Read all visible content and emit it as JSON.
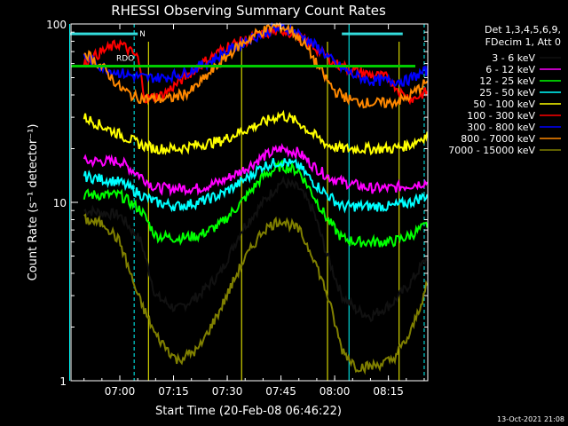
{
  "chart_data": {
    "type": "line",
    "title": "RHESSI Observing Summary Count Rates",
    "xlabel": "Start Time (20-Feb-08 06:46:22)",
    "ylabel": "Count Rate (s⁻¹ detector⁻¹)",
    "y_scale": "log",
    "ylim": [
      1,
      100
    ],
    "xlim": [
      "06:46:22",
      "08:26"
    ],
    "x_ticks": [
      "07:00",
      "07:15",
      "07:30",
      "07:45",
      "08:00",
      "08:15"
    ],
    "y_ticks": [
      "1",
      "10",
      "100"
    ],
    "legend_header": [
      "Det 1,3,4,5,6,9,",
      "FDecim 1, Att 0"
    ],
    "legend_position": "right",
    "footer_date": "13-Oct-2021 21:08",
    "flags": [
      {
        "label": "RDO",
        "color": "#00cc00",
        "value": 58
      },
      {
        "label": "N",
        "color": "#33dddd",
        "value": 88
      }
    ],
    "night_markers": [
      {
        "name": "night-1",
        "start": "06:46",
        "end": "07:05",
        "value": 85
      },
      {
        "name": "night-2",
        "start": "08:02",
        "end": "08:19",
        "value": 85
      }
    ],
    "saa_markers": [
      "07:08",
      "07:34",
      "07:58",
      "08:18"
    ],
    "vertical_markers": [
      "06:46",
      "07:04",
      "08:04",
      "08:25"
    ],
    "series": [
      {
        "name": "3 - 6 keV",
        "color": "#000000",
        "x": [
          "06:50",
          "07:00",
          "07:06",
          "07:10",
          "07:16",
          "07:22",
          "07:28",
          "07:34",
          "07:40",
          "07:45",
          "07:50",
          "07:54",
          "07:58",
          "08:02",
          "08:06",
          "08:10",
          "08:16",
          "08:21",
          "08:26"
        ],
        "y": [
          9,
          8.5,
          6,
          3,
          2.5,
          3,
          4,
          7,
          10,
          13,
          12,
          9,
          5,
          3,
          2.5,
          2.3,
          2.7,
          3.5,
          5
        ]
      },
      {
        "name": "6 - 12 keV",
        "color": "#ff00ff",
        "x": [
          "06:50",
          "07:00",
          "07:06",
          "07:10",
          "07:16",
          "07:22",
          "07:28",
          "07:34",
          "07:40",
          "07:45",
          "07:50",
          "07:54",
          "07:58",
          "08:02",
          "08:06",
          "08:10",
          "08:16",
          "08:21",
          "08:26"
        ],
        "y": [
          17,
          17,
          14,
          12,
          12,
          12,
          13,
          15,
          18,
          20,
          19,
          16,
          14,
          13,
          12.5,
          12,
          12,
          12.5,
          13
        ]
      },
      {
        "name": "12 - 25 keV",
        "color": "#00ff00",
        "x": [
          "06:50",
          "07:00",
          "07:06",
          "07:10",
          "07:16",
          "07:22",
          "07:28",
          "07:34",
          "07:40",
          "07:45",
          "07:50",
          "07:54",
          "07:58",
          "08:02",
          "08:06",
          "08:10",
          "08:16",
          "08:21",
          "08:26"
        ],
        "y": [
          11,
          11,
          9,
          6.5,
          6.3,
          6.5,
          7.5,
          10,
          14,
          16,
          15,
          11,
          8,
          6.3,
          6,
          6,
          6,
          6.5,
          7.5
        ]
      },
      {
        "name": "25 - 50 keV",
        "color": "#00ffff",
        "x": [
          "06:50",
          "07:00",
          "07:06",
          "07:10",
          "07:16",
          "07:22",
          "07:28",
          "07:34",
          "07:40",
          "07:45",
          "07:50",
          "07:54",
          "07:58",
          "08:02",
          "08:06",
          "08:10",
          "08:16",
          "08:21",
          "08:26"
        ],
        "y": [
          14,
          13,
          11,
          10,
          9.5,
          10,
          11,
          13,
          16,
          17,
          16,
          13,
          11,
          9.5,
          9.5,
          9.5,
          9.5,
          10,
          11
        ]
      },
      {
        "name": "50 - 100 keV",
        "color": "#ffff00",
        "x": [
          "06:50",
          "07:00",
          "07:06",
          "07:10",
          "07:16",
          "07:22",
          "07:28",
          "07:34",
          "07:40",
          "07:45",
          "07:50",
          "07:54",
          "07:58",
          "08:02",
          "08:06",
          "08:10",
          "08:16",
          "08:21",
          "08:26"
        ],
        "y": [
          30,
          24,
          21,
          20,
          20,
          21,
          22,
          25,
          28,
          31,
          28,
          24,
          21,
          20,
          20,
          20,
          20,
          21,
          24
        ]
      },
      {
        "name": "100 - 300 keV",
        "color": "#ff0000",
        "x": [
          "06:50",
          "06:55",
          "07:00",
          "07:05",
          "07:07",
          "07:12",
          "07:18",
          "07:24",
          "07:30",
          "07:36",
          "07:42",
          "07:46",
          "07:50",
          "07:56",
          "08:00",
          "08:05",
          "08:10",
          "08:15",
          "08:19",
          "08:22",
          "08:26"
        ],
        "y": [
          60,
          70,
          78,
          65,
          38,
          40,
          50,
          62,
          75,
          82,
          90,
          92,
          85,
          70,
          60,
          55,
          52,
          50,
          40,
          38,
          42
        ]
      },
      {
        "name": "300 - 800 keV",
        "color": "#0000ff",
        "x": [
          "06:50",
          "06:56",
          "07:02",
          "07:07",
          "07:12",
          "07:18",
          "07:24",
          "07:30",
          "07:36",
          "07:42",
          "07:46",
          "07:50",
          "07:56",
          "08:00",
          "08:05",
          "08:10",
          "08:15",
          "08:20",
          "08:26"
        ],
        "y": [
          66,
          56,
          52,
          50,
          50,
          53,
          60,
          70,
          82,
          92,
          96,
          88,
          72,
          60,
          52,
          48,
          48,
          48,
          55
        ]
      },
      {
        "name": "800 - 7000 keV",
        "color": "#ff8800",
        "x": [
          "06:50",
          "06:56",
          "07:00",
          "07:04",
          "07:08",
          "07:14",
          "07:20",
          "07:26",
          "07:32",
          "07:38",
          "07:44",
          "07:48",
          "07:52",
          "07:56",
          "08:00",
          "08:05",
          "08:10",
          "08:15",
          "08:20",
          "08:26"
        ],
        "y": [
          70,
          55,
          44,
          39,
          38,
          38,
          42,
          55,
          72,
          88,
          98,
          92,
          75,
          55,
          42,
          37,
          36,
          36,
          38,
          48
        ]
      },
      {
        "name": "7000 - 15000 keV",
        "color": "#808000",
        "x": [
          "06:50",
          "06:56",
          "07:00",
          "07:05",
          "07:10",
          "07:16",
          "07:22",
          "07:28",
          "07:34",
          "07:40",
          "07:45",
          "07:50",
          "07:54",
          "07:58",
          "08:02",
          "08:06",
          "08:10",
          "08:16",
          "08:21",
          "08:26"
        ],
        "y": [
          8,
          7.5,
          6,
          3,
          1.8,
          1.3,
          1.5,
          2.5,
          4.5,
          7,
          8,
          7,
          5,
          3,
          1.5,
          1.2,
          1.2,
          1.3,
          1.8,
          3.5
        ]
      }
    ]
  }
}
